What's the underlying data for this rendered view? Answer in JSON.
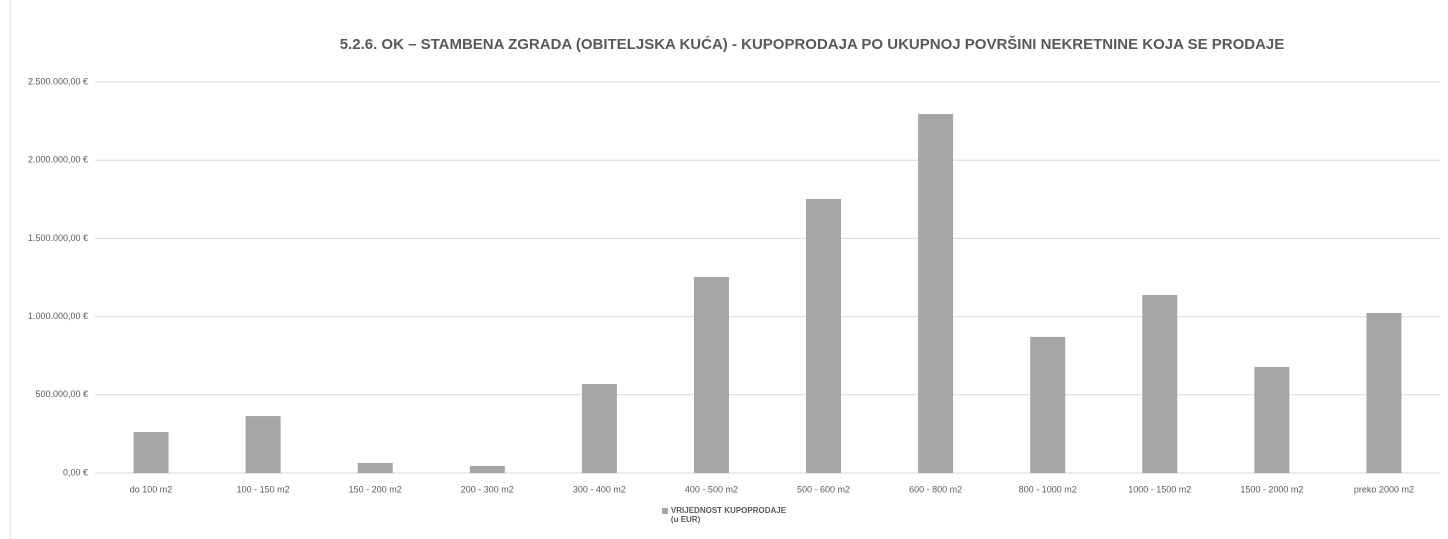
{
  "chart_data": {
    "type": "bar",
    "title": "5.2.6. OK – STAMBENA ZGRADA (OBITELJSKA KUĆA) - KUPOPRODAJA PO UKUPNOJ POVRŠINI NEKRETNINE KOJA SE PRODAJE",
    "categories": [
      "do 100 m2",
      "100 - 150 m2",
      "150 - 200 m2",
      "200 - 300 m2",
      "300 - 400 m2",
      "400 - 500 m2",
      "500 - 600 m2",
      "600 - 800 m2",
      "800 - 1000 m2",
      "1000 - 1500 m2",
      "1500 - 2000 m2",
      "preko 2000 m2"
    ],
    "series": [
      {
        "name": "VRIJEDNOST KUPOPRODAJE\n(u EUR)",
        "color": "#a5a5a5",
        "values": [
          262000,
          364000,
          64000,
          45000,
          569000,
          1253000,
          1752000,
          2295000,
          870000,
          1138000,
          678000,
          1023000
        ]
      }
    ],
    "ylim": [
      0,
      2500000
    ],
    "yticks": [
      {
        "value": 0,
        "label": "0,00 €"
      },
      {
        "value": 500000,
        "label": "500.000,00 €"
      },
      {
        "value": 1000000,
        "label": "1.000.000,00 €"
      },
      {
        "value": 1500000,
        "label": "1.500.000,00 €"
      },
      {
        "value": 2000000,
        "label": "2.000.000,00 €"
      },
      {
        "value": 2500000,
        "label": "2.500.000,00 €"
      }
    ],
    "grid": true,
    "legend": "bottom"
  }
}
